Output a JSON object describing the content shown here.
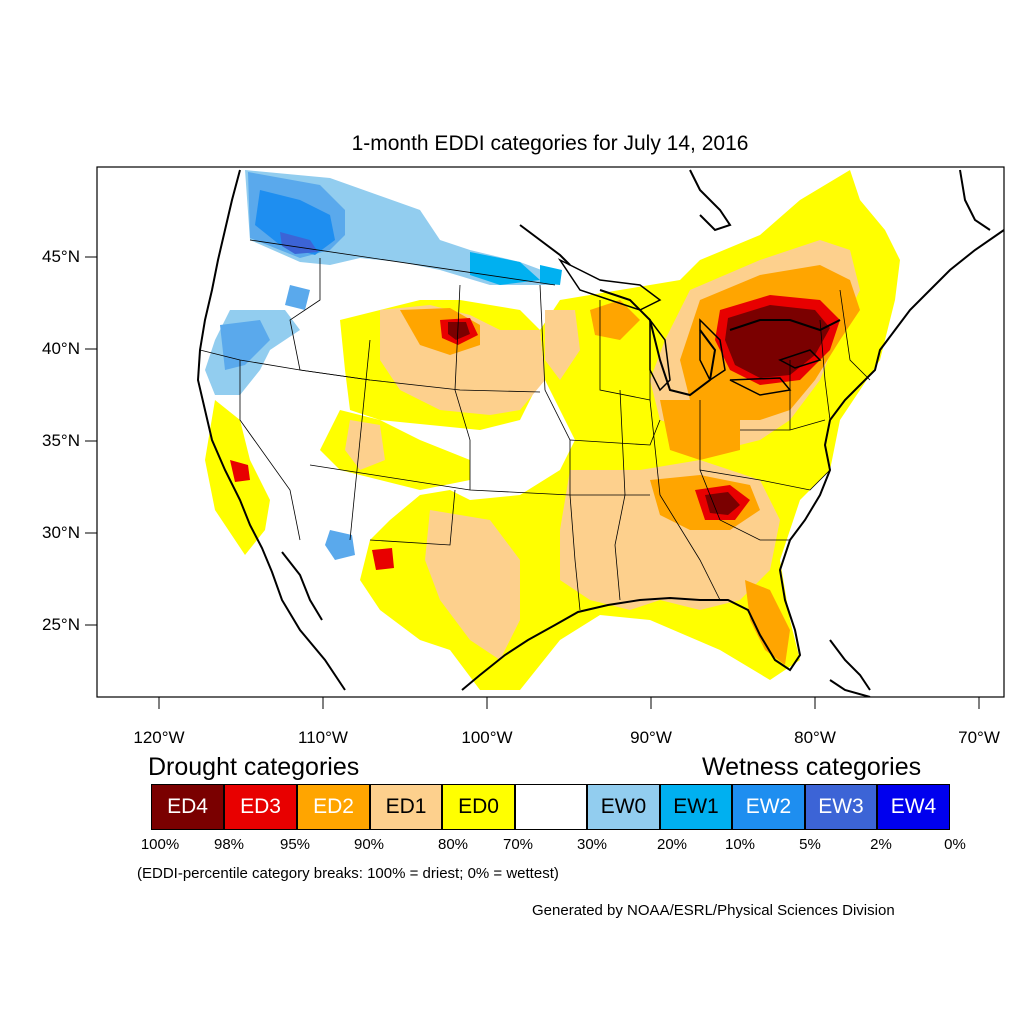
{
  "title": "1-month EDDI categories for July 14, 2016",
  "lat_labels": [
    "45°N",
    "40°N",
    "35°N",
    "30°N",
    "25°N"
  ],
  "lon_labels": [
    "120°W",
    "110°W",
    "100°W",
    "90°W",
    "80°W",
    "70°W"
  ],
  "legend": {
    "drought_title": "Drought categories",
    "wetness_title": "Wetness categories",
    "categories": [
      {
        "label": "ED4",
        "color": "#7a0000",
        "text_color": "#ffffff"
      },
      {
        "label": "ED3",
        "color": "#e80000",
        "text_color": "#ffffff"
      },
      {
        "label": "ED2",
        "color": "#ffa500",
        "text_color": "#ffffff"
      },
      {
        "label": "ED1",
        "color": "#fdd08d",
        "text_color": "#000000"
      },
      {
        "label": "ED0",
        "color": "#ffff00",
        "text_color": "#000000"
      },
      {
        "label": "",
        "color": "#ffffff",
        "text_color": "#000000"
      },
      {
        "label": "EW0",
        "color": "#92cdef",
        "text_color": "#000000"
      },
      {
        "label": "EW1",
        "color": "#00b0f0",
        "text_color": "#000000"
      },
      {
        "label": "EW2",
        "color": "#1e8ef0",
        "text_color": "#ffffff"
      },
      {
        "label": "EW3",
        "color": "#3c64d6",
        "text_color": "#ffffff"
      },
      {
        "label": "EW4",
        "color": "#0000ee",
        "text_color": "#ffffff"
      }
    ],
    "percentiles": [
      "100%",
      "98%",
      "95%",
      "90%",
      "80%",
      "70%",
      "30%",
      "20%",
      "10%",
      "5%",
      "2%",
      "0%"
    ]
  },
  "footnote": "(EDDI-percentile category breaks: 100% = driest; 0% = wettest)",
  "credit": "Generated by NOAA/ESRL/Physical Sciences Division"
}
